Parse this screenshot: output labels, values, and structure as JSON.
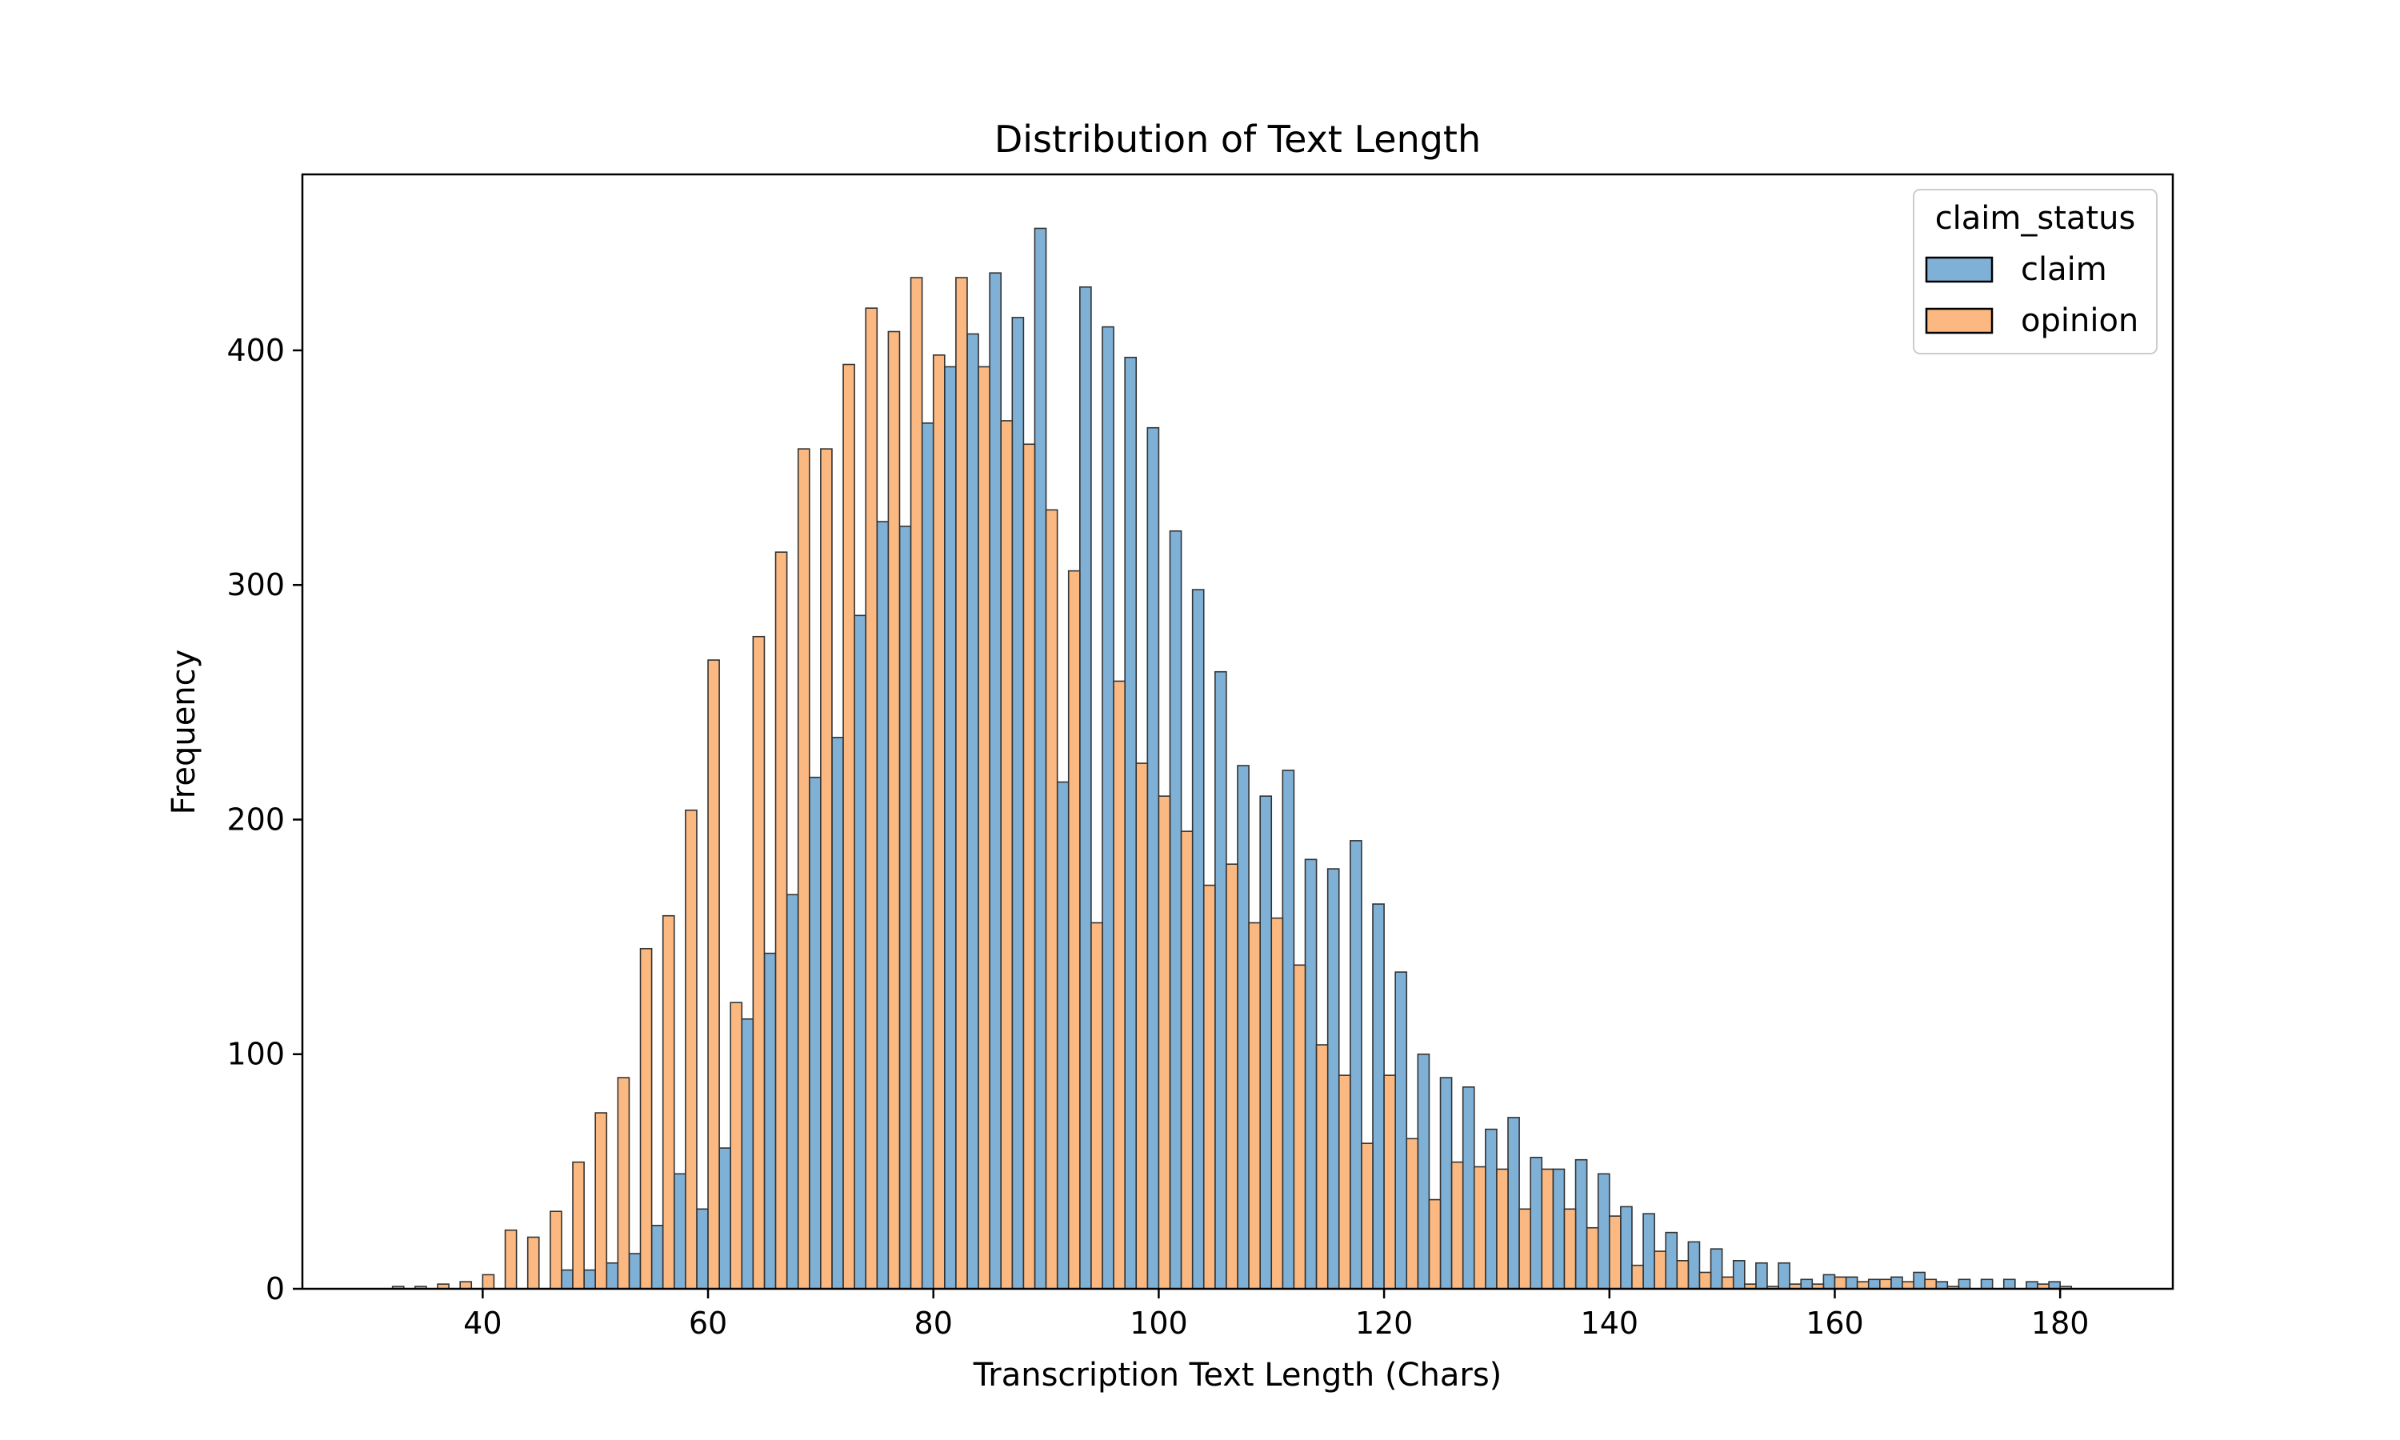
{
  "chart_data": {
    "type": "bar",
    "title": "Distribution of Text Length",
    "xlabel": "Transcription Text Length (Chars)",
    "ylabel": "Frequency",
    "xlim": [
      24,
      190
    ],
    "ylim": [
      0,
      475
    ],
    "xticks": [
      40,
      60,
      80,
      100,
      120,
      140,
      160,
      180
    ],
    "yticks": [
      0,
      100,
      200,
      300,
      400
    ],
    "bin_start": 31,
    "bin_width": 2,
    "grid": false,
    "legend": {
      "title": "claim_status",
      "placement": "top-right",
      "entries": [
        {
          "name": "claim",
          "color": "#7fb1d7"
        },
        {
          "name": "opinion",
          "color": "#fbb880"
        }
      ]
    },
    "series": [
      {
        "name": "claim",
        "color": "#7fb1d7",
        "values": [
          0,
          0,
          0,
          0,
          0,
          0,
          0,
          0,
          8,
          8,
          11,
          15,
          27,
          49,
          34,
          60,
          115,
          143,
          168,
          218,
          235,
          287,
          327,
          325,
          369,
          393,
          407,
          433,
          414,
          452,
          216,
          427,
          410,
          397,
          367,
          323,
          298,
          263,
          223,
          210,
          221,
          183,
          179,
          191,
          164,
          135,
          100,
          90,
          86,
          68,
          73,
          56,
          51,
          55,
          49,
          35,
          32,
          24,
          20,
          17,
          12,
          11,
          11,
          4,
          6,
          5,
          4,
          5,
          7,
          3,
          4,
          4,
          4,
          3,
          3
        ]
      },
      {
        "name": "opinion",
        "color": "#fbb880",
        "values": [
          1,
          1,
          2,
          3,
          6,
          25,
          22,
          33,
          54,
          75,
          90,
          145,
          159,
          204,
          268,
          122,
          278,
          314,
          358,
          358,
          394,
          418,
          408,
          431,
          398,
          431,
          393,
          370,
          360,
          332,
          306,
          156,
          259,
          224,
          210,
          195,
          172,
          181,
          156,
          158,
          138,
          104,
          91,
          62,
          91,
          64,
          38,
          54,
          52,
          51,
          34,
          51,
          34,
          26,
          31,
          10,
          16,
          12,
          7,
          5,
          2,
          1,
          2,
          2,
          5,
          3,
          4,
          3,
          4,
          1,
          0,
          0,
          0,
          2,
          1
        ]
      }
    ]
  }
}
